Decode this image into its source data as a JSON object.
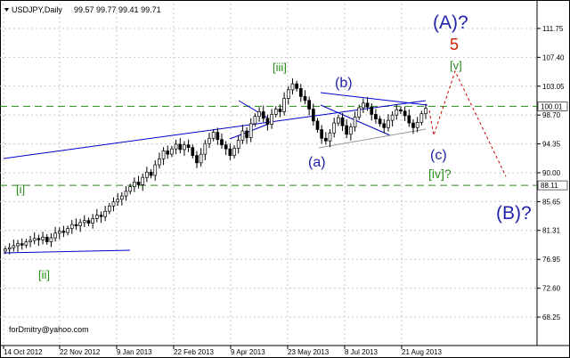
{
  "chart_data": {
    "type": "candlestick",
    "symbol_header": "USDJPY,Daily",
    "ohlc_header": "99.57 99.77 99.41 99.71",
    "watermark": "forDmitry@yahoo.com",
    "ylim": [
      64.5,
      115.5
    ],
    "y_ticks": [
      "111.75",
      "107.40",
      "103.05",
      "98.70",
      "94.35",
      "90.00",
      "85.65",
      "81.31",
      "76.95",
      "72.60",
      "68.25"
    ],
    "y_tick_values": [
      111.75,
      107.4,
      103.05,
      98.7,
      94.35,
      90.0,
      85.65,
      81.31,
      76.95,
      72.6,
      68.25
    ],
    "x_ticks": [
      "14 Oct 2012",
      "22 Nov 2012",
      "9 Jan 2013",
      "22 Feb 2013",
      "9 Apr 2013",
      "23 May 2013",
      "8 Jul 2013",
      "21 Aug 2013"
    ],
    "price_labels": [
      {
        "text": "100.01",
        "value": 100.01
      },
      {
        "text": "88.11",
        "value": 88.11
      }
    ],
    "horizontal_levels": [
      100.01,
      88.11
    ],
    "colors": {
      "up_candle": "#000000",
      "down_candle": "#000000",
      "channel": "#0000cc",
      "wave_minor": "#2a8a1a",
      "wave_major": "#2222aa",
      "wave_five": "#cc2200",
      "projection": "#cc0000",
      "level_line": "#2a8a1a",
      "grid": "#c8c8c8"
    },
    "series": [
      {
        "values": [
          78.5,
          78.7,
          79.0,
          79.3,
          79.1,
          79.6,
          79.8,
          80.1,
          79.9,
          80.3,
          79.6,
          80.2,
          80.9,
          81.2,
          81.0,
          81.6,
          82.2,
          82.0,
          82.5,
          82.8,
          82.4,
          83.1,
          83.6,
          83.4,
          84.2,
          85.0,
          85.6,
          86.0,
          86.5,
          87.2,
          87.9,
          88.6,
          88.2,
          89.3,
          90.1,
          89.6,
          91.2,
          92.1,
          93.3,
          92.8,
          93.6,
          94.3,
          93.5,
          94.2,
          93.8,
          92.6,
          91.5,
          92.8,
          94.4,
          95.2,
          96.1,
          95.0,
          94.2,
          93.6,
          92.6,
          93.7,
          94.9,
          96.3,
          95.3,
          97.4,
          98.5,
          99.2,
          98.2,
          97.3,
          98.8,
          99.6,
          99.2,
          101.2,
          102.5,
          103.4,
          102.7,
          101.5,
          100.9,
          99.6,
          97.8,
          96.5,
          95.2,
          94.8,
          96.0,
          97.5,
          98.3,
          97.1,
          95.8,
          96.9,
          98.4,
          99.8,
          100.5,
          99.9,
          98.8,
          98.1,
          97.4,
          96.8,
          97.9,
          98.7,
          99.5,
          99.3,
          98.6,
          97.5,
          96.8,
          97.6,
          98.9,
          99.7
        ]
      }
    ],
    "wave_labels": [
      {
        "text": "[i]",
        "color": "wave_minor"
      },
      {
        "text": "[ii]",
        "color": "wave_minor"
      },
      {
        "text": "[iii]",
        "color": "wave_minor"
      },
      {
        "text": "(a)",
        "color": "wave_major"
      },
      {
        "text": "(b)",
        "color": "wave_major"
      },
      {
        "text": "(c)",
        "color": "wave_major"
      },
      {
        "text": "[iv]?",
        "color": "wave_minor"
      },
      {
        "text": "[v]",
        "color": "wave_minor"
      },
      {
        "text": "5",
        "color": "wave_five"
      },
      {
        "text": "(A)?",
        "color": "wave_major"
      },
      {
        "text": "(B)?",
        "color": "wave_major"
      }
    ]
  }
}
